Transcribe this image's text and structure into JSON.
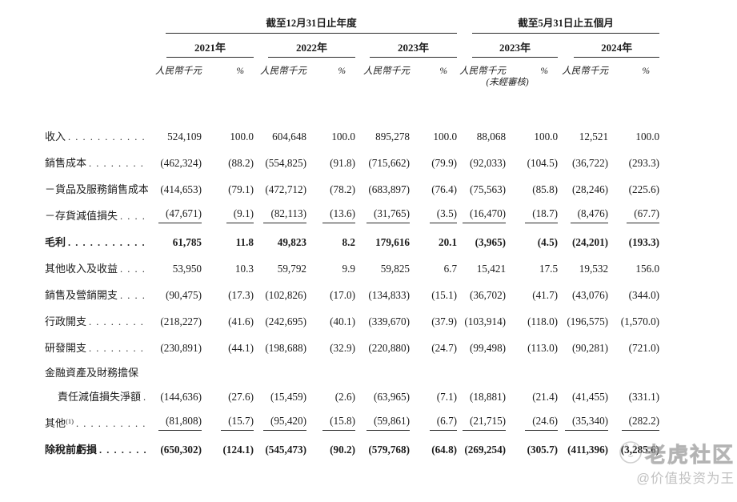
{
  "table": {
    "group_titles": [
      "截至12月31日止年度",
      "截至5月31日止五個月"
    ],
    "years": [
      "2021年",
      "2022年",
      "2023年",
      "2023年",
      "2024年"
    ],
    "unit_label": "人民幣千元",
    "pct_label": "%",
    "unaudited_note": "(未經審核)",
    "rows": [
      {
        "label": "收入",
        "dots": true,
        "values": [
          "524,109",
          "100.0",
          "604,648",
          "100.0",
          "895,278",
          "100.0",
          "88,068",
          "100.0",
          "12,521",
          "100.0"
        ]
      },
      {
        "label": "銷售成本",
        "dots": true,
        "values": [
          "(462,324)",
          "(88.2)",
          "(554,825)",
          "(91.8)",
          "(715,662)",
          "(79.9)",
          "(92,033)",
          "(104.5)",
          "(36,722)",
          "(293.3)"
        ]
      },
      {
        "label": "－貨品及服務銷售成本",
        "dots": false,
        "values": [
          "(414,653)",
          "(79.1)",
          "(472,712)",
          "(78.2)",
          "(683,897)",
          "(76.4)",
          "(75,563)",
          "(85.8)",
          "(28,246)",
          "(225.6)"
        ]
      },
      {
        "label": "－存貨減值損失",
        "dots": true,
        "rule_below": true,
        "values": [
          "(47,671)",
          "(9.1)",
          "(82,113)",
          "(13.6)",
          "(31,765)",
          "(3.5)",
          "(16,470)",
          "(18.7)",
          "(8,476)",
          "(67.7)"
        ]
      },
      {
        "label": "毛利",
        "bold": true,
        "dots": true,
        "values": [
          "61,785",
          "11.8",
          "49,823",
          "8.2",
          "179,616",
          "20.1",
          "(3,965)",
          "(4.5)",
          "(24,201)",
          "(193.3)"
        ]
      },
      {
        "label": "其他收入及收益",
        "dots": true,
        "values": [
          "53,950",
          "10.3",
          "59,792",
          "9.9",
          "59,825",
          "6.7",
          "15,421",
          "17.5",
          "19,532",
          "156.0"
        ]
      },
      {
        "label": "銷售及營銷開支",
        "dots": true,
        "values": [
          "(90,475)",
          "(17.3)",
          "(102,826)",
          "(17.0)",
          "(134,833)",
          "(15.1)",
          "(36,702)",
          "(41.7)",
          "(43,076)",
          "(344.0)"
        ]
      },
      {
        "label": "行政開支",
        "dots": true,
        "values": [
          "(218,227)",
          "(41.6)",
          "(242,695)",
          "(40.1)",
          "(339,670)",
          "(37.9)",
          "(103,914)",
          "(118.0)",
          "(196,575)",
          "(1,570.0)"
        ]
      },
      {
        "label": "研發開支",
        "dots": true,
        "values": [
          "(230,891)",
          "(44.1)",
          "(198,688)",
          "(32.9)",
          "(220,880)",
          "(24.7)",
          "(99,498)",
          "(113.0)",
          "(90,281)",
          "(721.0)"
        ]
      },
      {
        "label": "金融資產及財務擔保",
        "dots": false,
        "tight": true,
        "values": [
          "",
          "",
          "",
          "",
          "",
          "",
          "",
          "",
          "",
          ""
        ]
      },
      {
        "label": "責任減值損失淨額",
        "indent": true,
        "dots": true,
        "values": [
          "(144,636)",
          "(27.6)",
          "(15,459)",
          "(2.6)",
          "(63,965)",
          "(7.1)",
          "(18,881)",
          "(21.4)",
          "(41,455)",
          "(331.1)"
        ]
      },
      {
        "label": "其他",
        "sup": "(1)",
        "dots": true,
        "rule_below": true,
        "values": [
          "(81,808)",
          "(15.7)",
          "(95,420)",
          "(15.8)",
          "(59,861)",
          "(6.7)",
          "(21,715)",
          "(24.6)",
          "(35,340)",
          "(282.2)"
        ]
      },
      {
        "label": "除稅前虧損",
        "bold": true,
        "dots": true,
        "values": [
          "(650,302)",
          "(124.1)",
          "(545,473)",
          "(90.2)",
          "(579,768)",
          "(64.8)",
          "(269,254)",
          "(305.7)",
          "(411,396)",
          "(3,285.6)"
        ]
      }
    ]
  },
  "watermark": {
    "brand": "老虎社区",
    "handle": "@价值投资为王",
    "logo": "tiger-logo-icon"
  },
  "colors": {
    "text": "#1c1c1c",
    "rule": "#2b2b2b",
    "watermark_gray": "#9e9e9e"
  }
}
